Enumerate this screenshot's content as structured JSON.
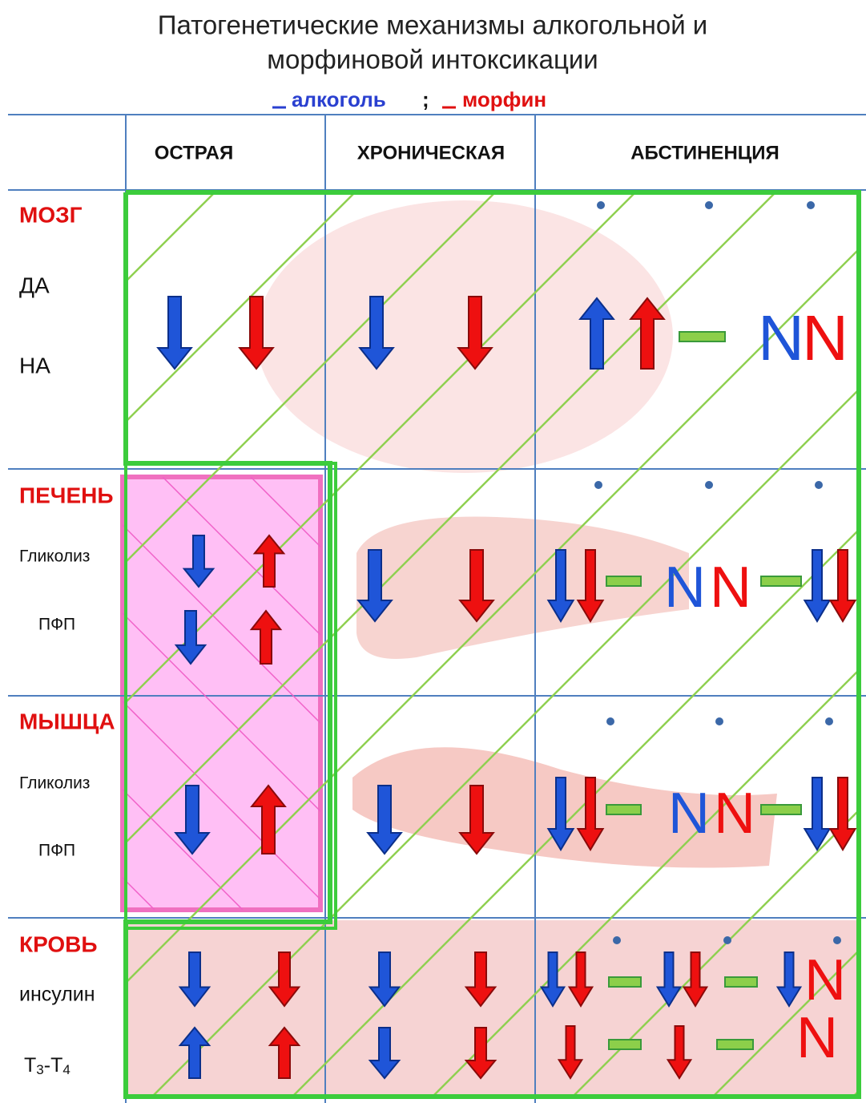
{
  "title_lines": [
    "Патогенетические механизмы алкогольной и",
    "морфиновой интоксикации"
  ],
  "legend": {
    "alcohol": "алкоголь",
    "separator": ";",
    "morphine": "морфин"
  },
  "columns": [
    "ОСТРАЯ",
    "ХРОНИЧЕСКАЯ",
    "АБСТИНЕНЦИЯ"
  ],
  "rows": [
    {
      "organ": "МОЗГ",
      "indicators": [
        "ДА",
        "НА"
      ],
      "abstinence_letters": [
        "N",
        "N"
      ]
    },
    {
      "organ": "ПЕЧЕНЬ",
      "indicators": [
        "Гликолиз",
        "ПФП"
      ],
      "abstinence_letters": [
        "N",
        "N"
      ]
    },
    {
      "organ": "МЫШЦА",
      "indicators": [
        "Гликолиз",
        "ПФП"
      ],
      "abstinence_letters": [
        "N",
        "N"
      ]
    },
    {
      "organ": "КРОВЬ",
      "indicators": [
        "инсулин"
      ],
      "hormone_label": [
        "Т",
        "3",
        "-Т",
        "4"
      ],
      "abstinence_letters": [
        "N",
        "N"
      ]
    }
  ]
}
